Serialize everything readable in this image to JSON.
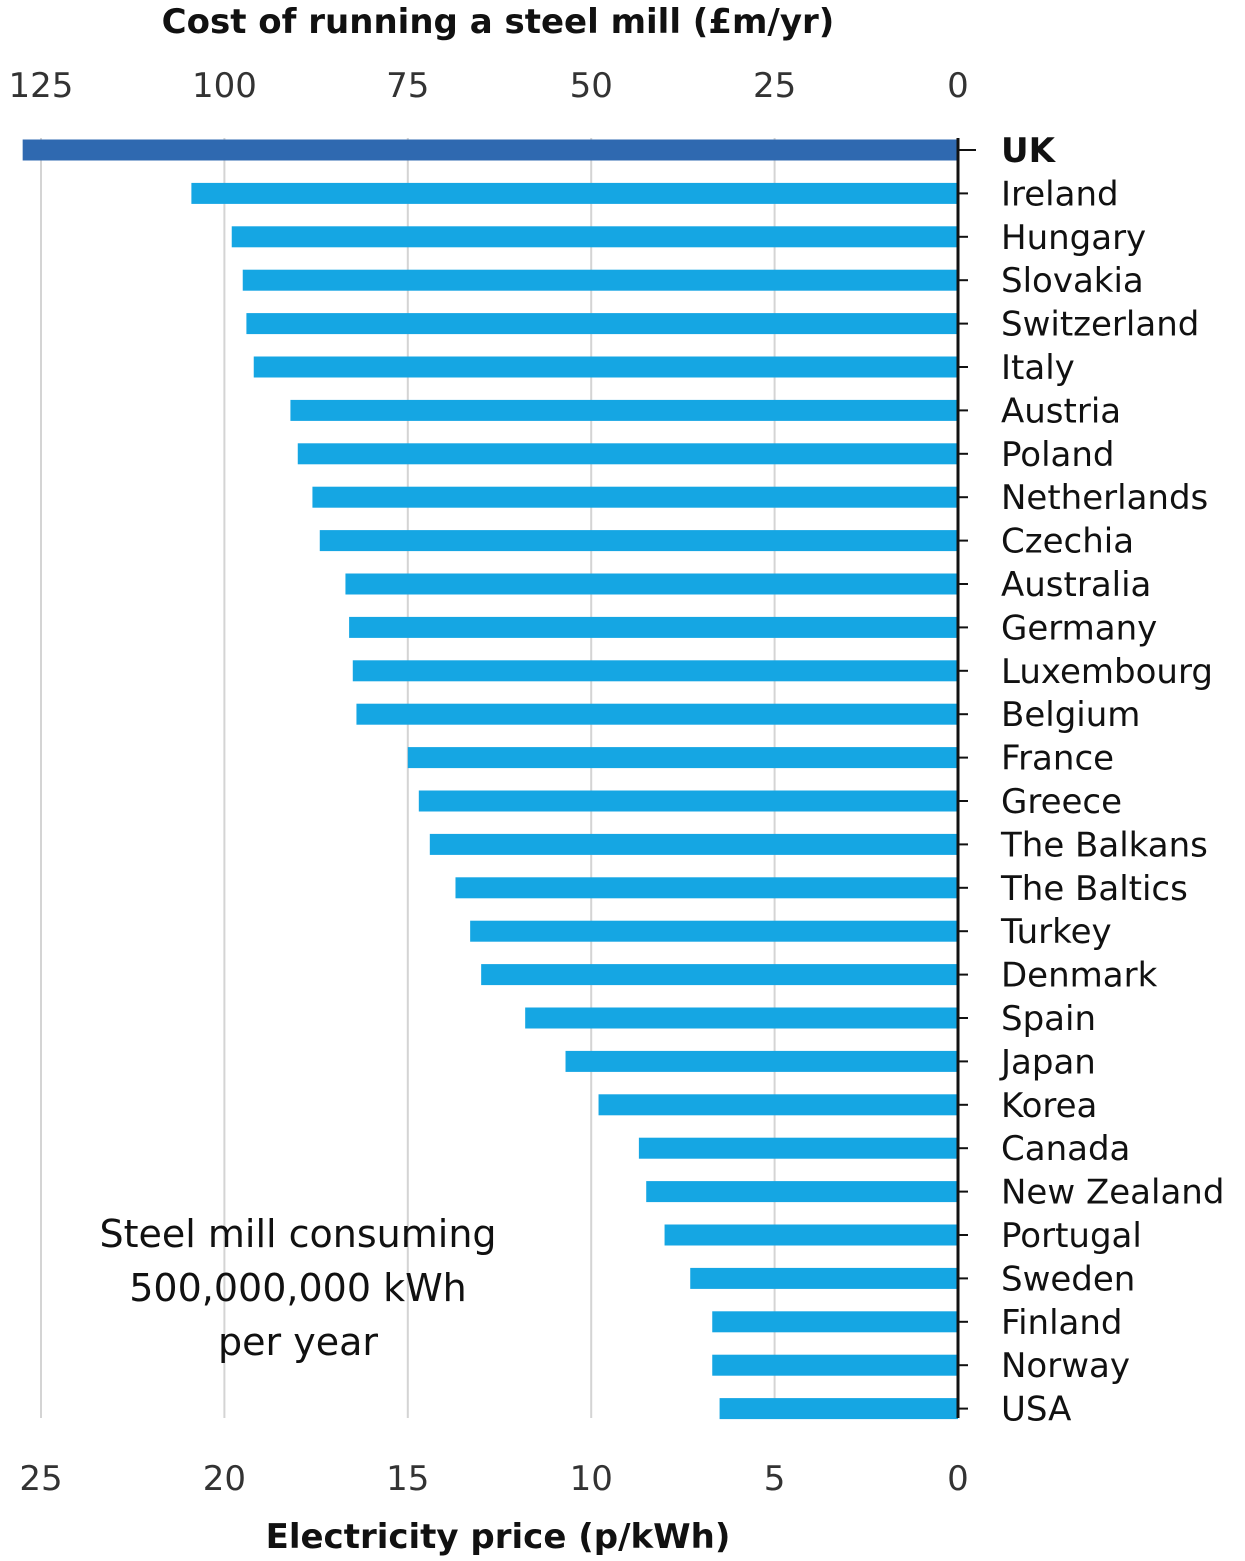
{
  "chart_data": {
    "type": "bar",
    "orientation": "horizontal",
    "title_top": "Cost of running a steel mill (£m/yr)",
    "xlabel": "Electricity price (p/kWh)",
    "top_axis_label": "Cost of running a steel mill (£m/yr)",
    "bottom_ticks": [
      "25",
      "20",
      "15",
      "10",
      "5",
      "0"
    ],
    "top_ticks": [
      "125",
      "100",
      "75",
      "50",
      "25",
      "0"
    ],
    "xlim": [
      0,
      25
    ],
    "x_reversed": true,
    "grid": true,
    "annotation": [
      "Steel mill consuming",
      "500,000,000 kWh",
      "per year"
    ],
    "highlight_color": "#2f69b0",
    "bar_color": "#15a6e3",
    "categories": [
      "UK",
      "Ireland",
      "Hungary",
      "Slovakia",
      "Switzerland",
      "Italy",
      "Austria",
      "Poland",
      "Netherlands",
      "Czechia",
      "Australia",
      "Germany",
      "Luxembourg",
      "Belgium",
      "France",
      "Greece",
      "The Balkans",
      "The Baltics",
      "Turkey",
      "Denmark",
      "Spain",
      "Japan",
      "Korea",
      "Canada",
      "New Zealand",
      "Portugal",
      "Sweden",
      "Finland",
      "Norway",
      "USA"
    ],
    "highlight": [
      "UK"
    ],
    "series": [
      {
        "name": "Electricity price (p/kWh)",
        "values": [
          25.5,
          20.9,
          19.8,
          19.5,
          19.4,
          19.2,
          18.2,
          18.0,
          17.6,
          17.4,
          16.7,
          16.6,
          16.5,
          16.4,
          15.0,
          14.7,
          14.4,
          13.7,
          13.3,
          13.0,
          11.8,
          10.7,
          9.8,
          8.7,
          8.5,
          8.0,
          7.3,
          6.7,
          6.7,
          6.5
        ]
      }
    ]
  }
}
